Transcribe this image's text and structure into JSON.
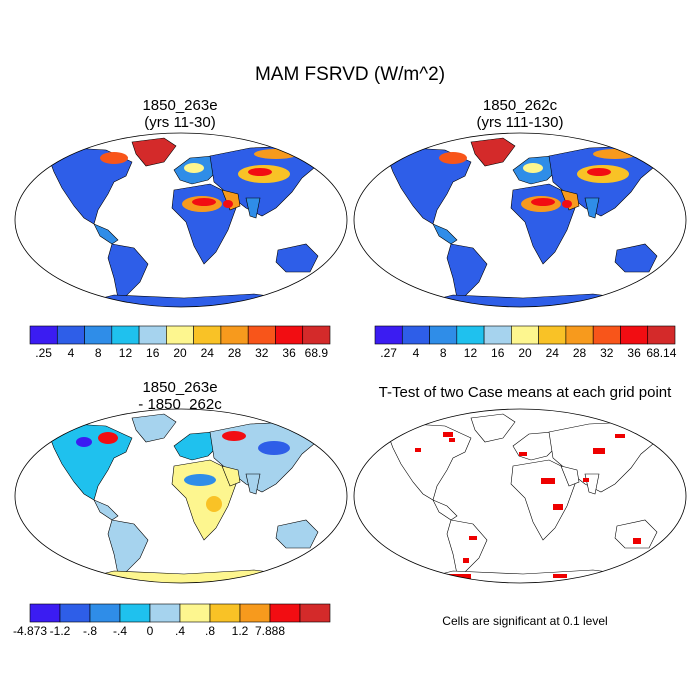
{
  "page": {
    "title": "MAM FSRVD (W/m^2)"
  },
  "panels": [
    {
      "id": "case1",
      "title_line1": "1850_263e",
      "title_line2": "(yrs 11-30)",
      "colorbar": {
        "colors": [
          "#3b1cf2",
          "#2e5ee8",
          "#2f8de8",
          "#1fc1ee",
          "#a6d3ee",
          "#fdf68f",
          "#f9c226",
          "#f79a1d",
          "#f8551a",
          "#f20d12",
          "#d42a2a"
        ],
        "labels": [
          ".25",
          "4",
          "8",
          "12",
          "16",
          "20",
          "24",
          "28",
          "32",
          "36",
          "68.9"
        ]
      }
    },
    {
      "id": "case2",
      "title_line1": "1850_262c",
      "title_line2": "(yrs 111-130)",
      "colorbar": {
        "colors": [
          "#3b1cf2",
          "#2e5ee8",
          "#2f8de8",
          "#1fc1ee",
          "#a6d3ee",
          "#fdf68f",
          "#f9c226",
          "#f79a1d",
          "#f8551a",
          "#f20d12",
          "#d42a2a"
        ],
        "labels": [
          ".27",
          "4",
          "8",
          "12",
          "16",
          "20",
          "24",
          "28",
          "32",
          "36",
          "68.14"
        ]
      }
    },
    {
      "id": "difference",
      "title_line1": "1850_263e",
      "title_line2": "- 1850_262c",
      "colorbar": {
        "colors": [
          "#3b1cf2",
          "#2e5ee8",
          "#2f8de8",
          "#1fc1ee",
          "#a6d3ee",
          "#fdf68f",
          "#f9c226",
          "#f79a1d",
          "#f20d12",
          "#d42a2a"
        ],
        "labels": [
          "-4.873",
          "-1.2",
          "-.8",
          "-.4",
          "0",
          ".4",
          ".8",
          "1.2",
          "7.888"
        ]
      }
    },
    {
      "id": "ttest",
      "title_line1": "T-Test of two Case means at each grid point",
      "footnote": "Cells are significant at 0.1 level"
    }
  ],
  "colors": {
    "map_outline": "#000000",
    "significant_cell": "#ee0000",
    "ocean": "#ffffff"
  }
}
